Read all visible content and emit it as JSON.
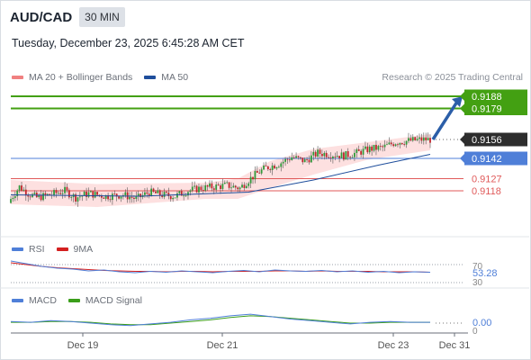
{
  "header": {
    "symbol": "AUD/CAD",
    "timeframe": "30 MIN",
    "timestamp": "Tuesday, December 23, 2025 6:45:28 AM CET"
  },
  "legend_main": [
    {
      "label": "MA 20 + Bollinger Bands",
      "color": "#f08080"
    },
    {
      "label": "MA 50",
      "color": "#1f4e9c"
    }
  ],
  "credit": "Research © 2025 Trading Central",
  "legend_rsi": [
    {
      "label": "RSI",
      "color": "#4f7fd8"
    },
    {
      "label": "9MA",
      "color": "#d42020"
    }
  ],
  "legend_macd": [
    {
      "label": "MACD",
      "color": "#4f7fd8"
    },
    {
      "label": "MACD Signal",
      "color": "#3b9e1a"
    }
  ],
  "colors": {
    "up": "#2f9a3a",
    "down": "#c0262d",
    "target": "#43a012",
    "pivot": "#4f7fd8",
    "support": "#e05a5a",
    "arrow": "#2b5ea8"
  },
  "chart_data": [
    {
      "type": "candlestick",
      "x_ticks": [
        "Dec 19",
        "Dec 21",
        "Dec 23",
        "Dec 31"
      ],
      "price_levels": [
        {
          "value": 0.9188,
          "label": "0.9188",
          "kind": "target"
        },
        {
          "value": 0.9179,
          "label": "0.9179",
          "kind": "target"
        },
        {
          "value": 0.9156,
          "label": "0.9156",
          "kind": "last_price"
        },
        {
          "value": 0.9142,
          "label": "0.9142",
          "kind": "pivot"
        },
        {
          "value": 0.9127,
          "label": "0.9127",
          "kind": "support"
        },
        {
          "value": 0.9118,
          "label": "0.9118",
          "kind": "support"
        }
      ],
      "ylim": [
        0.9105,
        0.9195
      ],
      "close_path": [
        [
          0,
          0.9112
        ],
        [
          4,
          0.9121
        ],
        [
          8,
          0.9116
        ],
        [
          12,
          0.9113
        ],
        [
          18,
          0.9115
        ],
        [
          25,
          0.9118
        ],
        [
          30,
          0.9113
        ],
        [
          36,
          0.9116
        ],
        [
          44,
          0.9114
        ],
        [
          52,
          0.9115
        ],
        [
          58,
          0.9112
        ],
        [
          64,
          0.9117
        ],
        [
          70,
          0.9115
        ],
        [
          76,
          0.9114
        ],
        [
          82,
          0.9118
        ],
        [
          88,
          0.912
        ],
        [
          94,
          0.9121
        ],
        [
          100,
          0.9122
        ],
        [
          106,
          0.912
        ],
        [
          110,
          0.9126
        ],
        [
          114,
          0.9131
        ],
        [
          118,
          0.9135
        ],
        [
          124,
          0.9138
        ],
        [
          130,
          0.9143
        ],
        [
          136,
          0.914
        ],
        [
          142,
          0.9146
        ],
        [
          148,
          0.9145
        ],
        [
          154,
          0.9144
        ],
        [
          160,
          0.9146
        ],
        [
          166,
          0.9149
        ],
        [
          172,
          0.915
        ],
        [
          178,
          0.9154
        ],
        [
          184,
          0.9155
        ],
        [
          190,
          0.9156
        ],
        [
          194,
          0.9156
        ]
      ],
      "ma50_path": [
        [
          0,
          0.9115
        ],
        [
          60,
          0.9114
        ],
        [
          110,
          0.9117
        ],
        [
          140,
          0.9126
        ],
        [
          170,
          0.9137
        ],
        [
          194,
          0.9145
        ]
      ],
      "bb_upper": [
        [
          0,
          0.9126
        ],
        [
          40,
          0.9123
        ],
        [
          90,
          0.9124
        ],
        [
          105,
          0.9127
        ],
        [
          120,
          0.914
        ],
        [
          140,
          0.9149
        ],
        [
          165,
          0.9154
        ],
        [
          194,
          0.916
        ]
      ],
      "bb_lower": [
        [
          0,
          0.9108
        ],
        [
          40,
          0.9106
        ],
        [
          90,
          0.9112
        ],
        [
          105,
          0.9112
        ],
        [
          120,
          0.912
        ],
        [
          140,
          0.913
        ],
        [
          165,
          0.9141
        ],
        [
          194,
          0.9148
        ]
      ],
      "forecast_arrow": {
        "from": 0.9156,
        "to": 0.9188
      }
    },
    {
      "type": "line",
      "name": "RSI",
      "axis_labels": [
        "70",
        "30"
      ],
      "last_value_label": "53.28",
      "ylim": [
        25,
        75
      ],
      "rsi": [
        78,
        72,
        66,
        62,
        60,
        56,
        58,
        54,
        52,
        55,
        53,
        56,
        54,
        52,
        55,
        57,
        54,
        58,
        56,
        55,
        57,
        54,
        56,
        53,
        55,
        52,
        54,
        53
      ],
      "ma9": [
        74,
        70,
        66,
        63,
        61,
        59,
        57,
        56,
        55,
        55,
        54,
        55,
        55,
        54,
        55,
        55,
        55,
        56,
        56,
        55,
        56,
        55,
        55,
        55,
        54,
        54,
        54,
        53
      ]
    },
    {
      "type": "line",
      "name": "MACD",
      "axis_labels": [
        "0"
      ],
      "last_value_label": "0.00",
      "ylim": [
        -0.0012,
        0.0014
      ],
      "macd": [
        0.0002,
        0.0001,
        0.0003,
        0.0002,
        0.0,
        -0.0002,
        -0.0003,
        -0.0001,
        0.0001,
        0.0004,
        0.0006,
        0.0009,
        0.0011,
        0.0008,
        0.0005,
        0.0003,
        0.0001,
        -0.0001,
        0.0001,
        0.0002,
        0.0001,
        0.0001
      ],
      "signal": [
        0.0001,
        0.0001,
        0.0002,
        0.0002,
        0.0001,
        -0.0001,
        -0.0002,
        -0.0002,
        0.0,
        0.0002,
        0.0004,
        0.0007,
        0.0009,
        0.0008,
        0.0006,
        0.0004,
        0.0002,
        0.0,
        0.0,
        0.0001,
        0.0001,
        0.0001
      ]
    }
  ]
}
